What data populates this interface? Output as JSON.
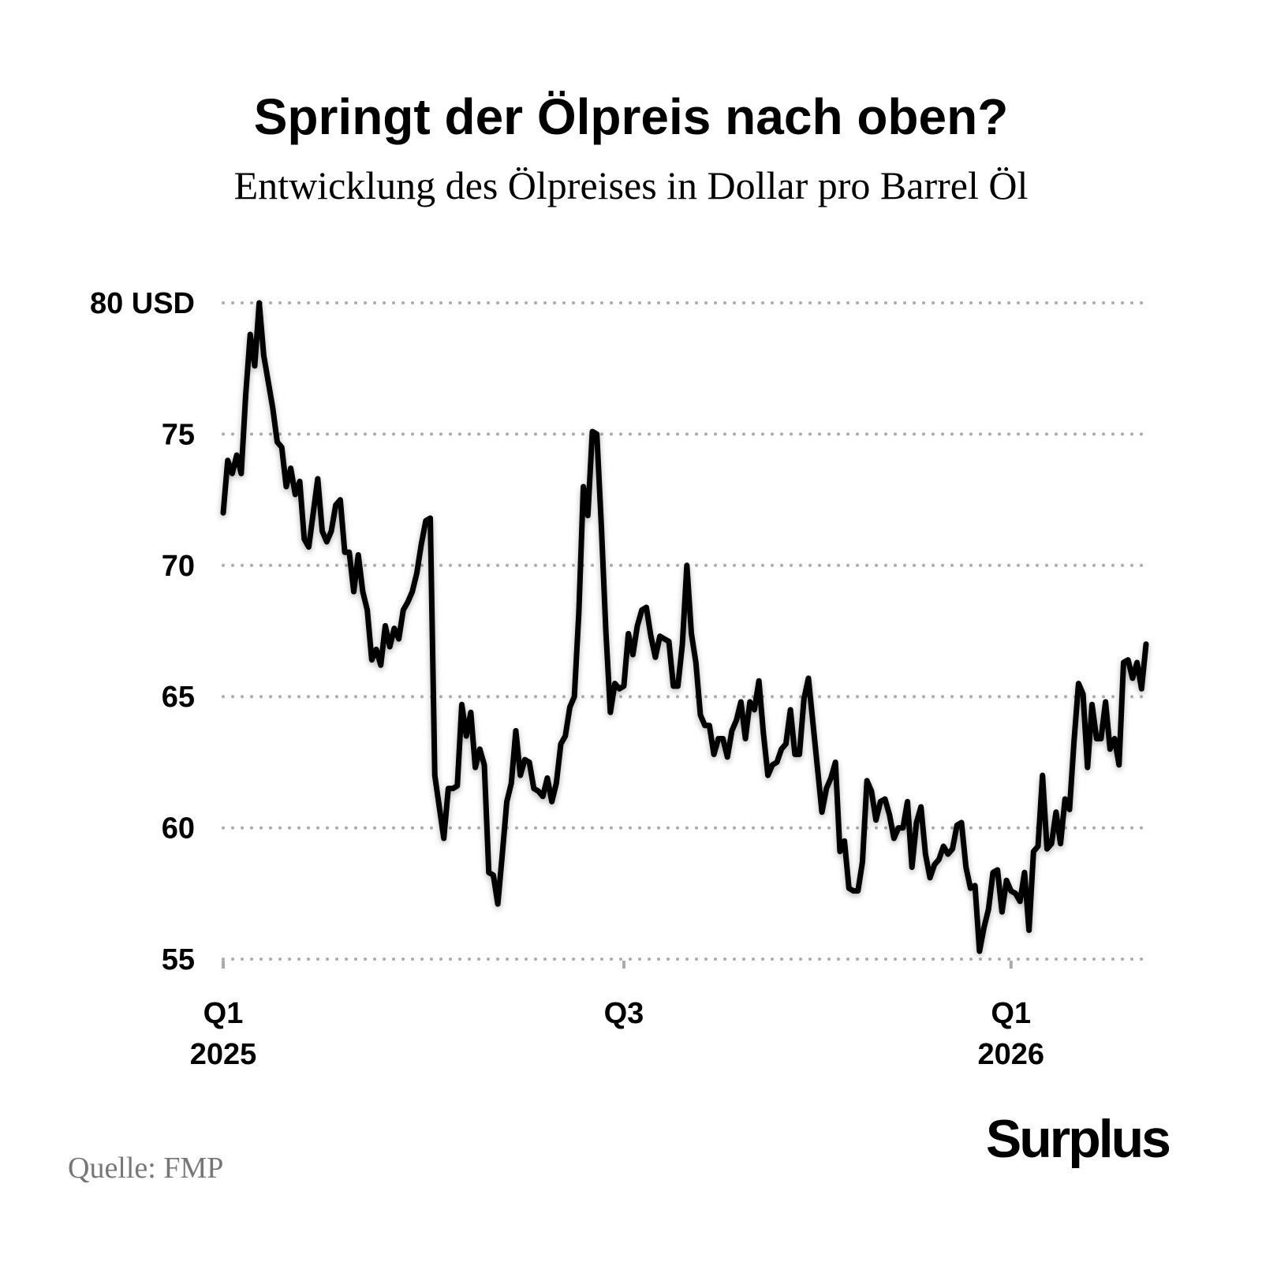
{
  "chart_data": {
    "type": "line",
    "title": "Springt der Ölpreis nach oben?",
    "subtitle": "Entwicklung des Ölpreises in Dollar pro Barrel Öl",
    "source": "Quelle: FMP",
    "brand": "Surplus",
    "series": [
      {
        "color": "#000000",
        "values": [
          72,
          74,
          73.5,
          74.2,
          73.5,
          76.5,
          78.8,
          77.6,
          80,
          78,
          77,
          76,
          74.7,
          74.5,
          73,
          73.7,
          72.7,
          73.2,
          71,
          70.7,
          72,
          73.3,
          71.3,
          70.9,
          71.3,
          72.3,
          72.5,
          70.5,
          70.5,
          69,
          70.4,
          69,
          68.3,
          66.4,
          66.8,
          66.2,
          67.7,
          66.9,
          67.6,
          67.2,
          68.3,
          68.6,
          69,
          69.7,
          70.8,
          71.7,
          71.8,
          62,
          60.8,
          59.6,
          61.5,
          61.5,
          61.6,
          64.7,
          63.5,
          64.4,
          62.3,
          63,
          62.4,
          58.3,
          58.2,
          57.1,
          59,
          61,
          61.7,
          63.7,
          62,
          62.6,
          62.5,
          61.5,
          61.4,
          61.2,
          61.9,
          61,
          61.7,
          63.2,
          63.5,
          64.6,
          65,
          68.2,
          73,
          71.9,
          75.1,
          75,
          71.5,
          67.5,
          64.4,
          65.5,
          65.3,
          65.4,
          67.4,
          66.6,
          67.7,
          68.3,
          68.4,
          67.3,
          66.5,
          67.3,
          67.2,
          67.1,
          65.4,
          65.4,
          67,
          70,
          67.4,
          66.3,
          64.3,
          63.9,
          63.9,
          62.8,
          63.4,
          63.4,
          62.7,
          63.7,
          64.1,
          64.8,
          63.4,
          64.8,
          64.5,
          65.6,
          63.6,
          62,
          62.4,
          62.5,
          63,
          63.2,
          64.5,
          62.8,
          62.8,
          64.9,
          65.7,
          64,
          62.3,
          60.6,
          61.5,
          61.9,
          62.5,
          59.1,
          59.5,
          57.7,
          57.6,
          57.6,
          58.7,
          61.8,
          61.4,
          60.3,
          61,
          61.1,
          60.5,
          59.6,
          60,
          60,
          61,
          58.5,
          60.2,
          60.8,
          59,
          58.1,
          58.6,
          58.8,
          59.3,
          59,
          59.2,
          60.1,
          60.2,
          58.5,
          57.7,
          57.8,
          55.3,
          56.2,
          56.9,
          58.3,
          58.4,
          56.8,
          58,
          57.6,
          57.5,
          57.2,
          58.3,
          56.1,
          59.1,
          59.3,
          62,
          59.2,
          59.4,
          60.6,
          59.4,
          61.1,
          60.7,
          63.3,
          65.5,
          65.1,
          62.3,
          64.7,
          63.4,
          63.4,
          64.8,
          63,
          63.4,
          62.4,
          66.3,
          66.4,
          65.7,
          66.3,
          65.3,
          67
        ]
      }
    ],
    "xlim": [
      0,
      205
    ],
    "xticks": [
      {
        "value": 0,
        "label": [
          "Q1",
          "2025"
        ]
      },
      {
        "value": 89,
        "label": [
          "Q3"
        ]
      },
      {
        "value": 175,
        "label": [
          "Q1",
          "2026"
        ]
      }
    ],
    "ylim": [
      55,
      80
    ],
    "yticks": [
      55,
      60,
      65,
      70,
      75,
      {
        "value": 80,
        "label": "80 USD"
      }
    ],
    "grid": true
  }
}
